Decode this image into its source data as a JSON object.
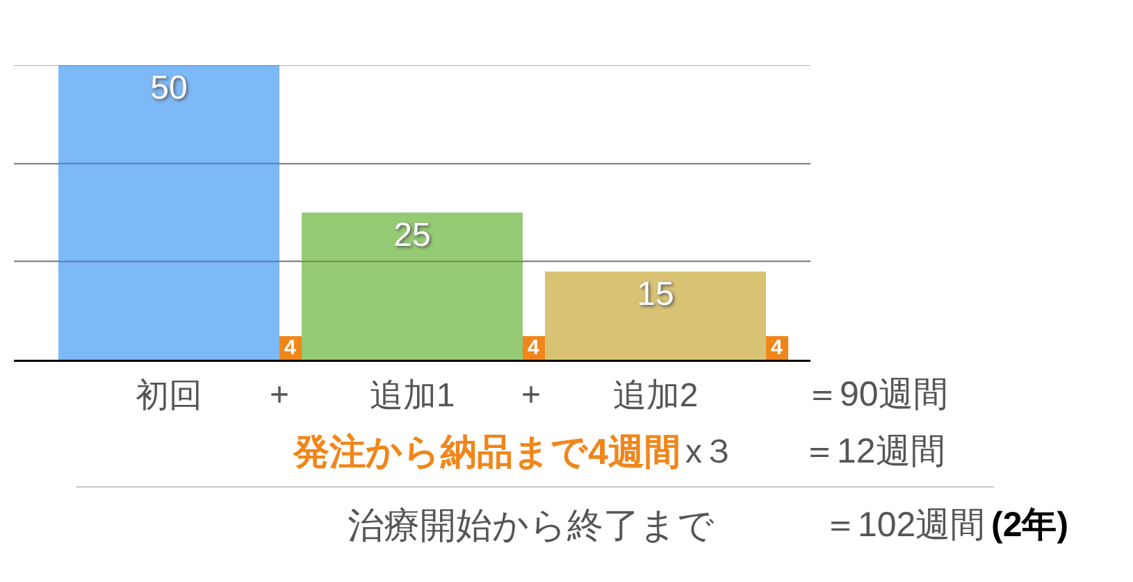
{
  "chart_data": {
    "type": "bar",
    "categories": [
      "初回",
      "追加1",
      "追加2"
    ],
    "series": [
      {
        "colors": [
          "#7db8f7",
          "#95cb75",
          "#d8c274"
        ],
        "values": [
          50,
          25,
          15
        ]
      },
      {
        "color": "#f0861a",
        "values": [
          4,
          4,
          4
        ]
      }
    ],
    "ylim": [
      0,
      50
    ],
    "yticks": [
      {
        "value": 16.7,
        "label": null
      },
      {
        "value": 33.3,
        "label": null
      },
      {
        "value": 50,
        "label": null
      }
    ],
    "grid": "y",
    "tick_labels": "x",
    "data_labels": true,
    "annotations": [
      "+",
      "+",
      "＝90週間",
      "発注から納品まで4週間",
      "x３",
      "＝12週間",
      "治療開始から終了まで",
      "＝102週間",
      "(2年)"
    ]
  }
}
